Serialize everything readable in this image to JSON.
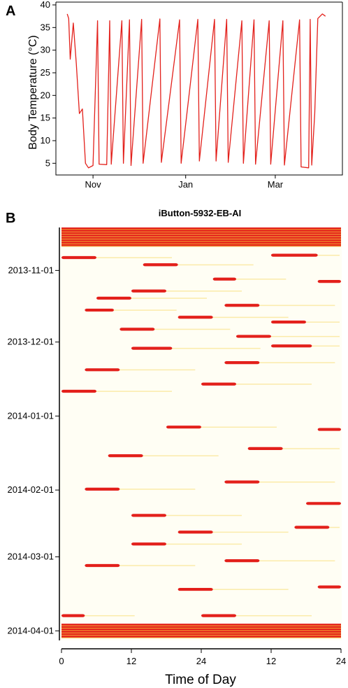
{
  "panel_a": {
    "letter": "A",
    "ylabel": "Body Temperature (°C)",
    "yticks": [
      "5",
      "10",
      "15",
      "20",
      "25",
      "30",
      "35",
      "40"
    ],
    "xticks": [
      "Nov",
      "Jan",
      "Mar"
    ]
  },
  "panel_b": {
    "letter": "B",
    "title": "iButton-5932-EB-AI",
    "dates": [
      "2013-11-01",
      "2013-12-01",
      "2014-01-01",
      "2014-02-01",
      "2014-03-01",
      "2014-04-01"
    ],
    "xticks": [
      "0",
      "12",
      "24",
      "12",
      "24"
    ],
    "xlabel": "Time of Day"
  },
  "colors": {
    "line": "#e3201b",
    "hot": "#e3201b",
    "warm": "#f7b733",
    "pale": "#fffef2",
    "cool": "#fffbe6"
  },
  "chart_data": [
    {
      "type": "line",
      "title": "",
      "xlabel": "",
      "ylabel": "Body Temperature (°C)",
      "ylim": [
        3,
        40
      ],
      "x_ticks": [
        "Nov",
        "Jan",
        "Mar"
      ],
      "y_ticks": [
        5,
        10,
        15,
        20,
        25,
        30,
        35,
        40
      ],
      "grid": false,
      "series": [
        {
          "values": [
            {
              "x": "2013-10-15",
              "y": 38
            },
            {
              "x": "2013-10-16",
              "y": 37
            },
            {
              "x": "2013-10-17",
              "y": 28
            },
            {
              "x": "2013-10-19",
              "y": 36
            },
            {
              "x": "2013-10-21",
              "y": 27
            },
            {
              "x": "2013-10-23",
              "y": 16
            },
            {
              "x": "2013-10-25",
              "y": 17
            },
            {
              "x": "2013-10-27",
              "y": 5.0
            },
            {
              "x": "2013-10-29",
              "y": 4.0
            },
            {
              "x": "2013-11-01",
              "y": 4.5
            },
            {
              "x": "2013-11-04",
              "y": 36.5
            },
            {
              "x": "2013-11-05",
              "y": 4.8
            },
            {
              "x": "2013-11-10",
              "y": 4.7
            },
            {
              "x": "2013-11-12",
              "y": 36.5
            },
            {
              "x": "2013-11-13",
              "y": 4.8
            },
            {
              "x": "2013-11-20",
              "y": 36.5
            },
            {
              "x": "2013-11-21",
              "y": 5.0
            },
            {
              "x": "2013-11-25",
              "y": 36.7
            },
            {
              "x": "2013-11-26",
              "y": 4.5
            },
            {
              "x": "2013-12-03",
              "y": 36.8
            },
            {
              "x": "2013-12-04",
              "y": 5.0
            },
            {
              "x": "2013-12-15",
              "y": 36.9
            },
            {
              "x": "2013-12-16",
              "y": 5.2
            },
            {
              "x": "2013-12-28",
              "y": 36.7
            },
            {
              "x": "2013-12-29",
              "y": 5.0
            },
            {
              "x": "2014-01-09",
              "y": 36.8
            },
            {
              "x": "2014-01-10",
              "y": 5.5
            },
            {
              "x": "2014-01-20",
              "y": 36.8
            },
            {
              "x": "2014-01-21",
              "y": 5.5
            },
            {
              "x": "2014-01-28",
              "y": 36.8
            },
            {
              "x": "2014-01-29",
              "y": 5.2
            },
            {
              "x": "2014-02-07",
              "y": 36.5
            },
            {
              "x": "2014-02-08",
              "y": 5.0
            },
            {
              "x": "2014-02-15",
              "y": 36.7
            },
            {
              "x": "2014-02-16",
              "y": 4.8
            },
            {
              "x": "2014-02-25",
              "y": 36.5
            },
            {
              "x": "2014-02-26",
              "y": 4.8
            },
            {
              "x": "2014-03-06",
              "y": 36.5
            },
            {
              "x": "2014-03-07",
              "y": 4.6
            },
            {
              "x": "2014-03-17",
              "y": 36.7
            },
            {
              "x": "2014-03-18",
              "y": 4.2
            },
            {
              "x": "2014-03-23",
              "y": 4.0
            },
            {
              "x": "2014-03-24",
              "y": 36.8
            },
            {
              "x": "2014-03-25",
              "y": 4.6
            },
            {
              "x": "2014-03-27",
              "y": 16
            },
            {
              "x": "2014-03-29",
              "y": 37
            },
            {
              "x": "2014-04-01",
              "y": 38
            },
            {
              "x": "2014-04-03",
              "y": 37.5
            }
          ]
        }
      ]
    },
    {
      "type": "heatmap",
      "title": "iButton-5932-EB-AI",
      "xlabel": "Time of Day",
      "ylabel": "",
      "x_ticks": [
        "0",
        "12",
        "24",
        "12",
        "24"
      ],
      "y_ticks": [
        "2013-11-01",
        "2013-12-01",
        "2014-01-01",
        "2014-02-01",
        "2014-03-01",
        "2014-04-01"
      ],
      "x_range_hours": [
        0,
        48
      ],
      "date_range": [
        "2013-10-14",
        "2014-04-05"
      ],
      "color_scale": [
        "#fffef2",
        "#fff3c4",
        "#f9c95a",
        "#f08a3a",
        "#e3201b"
      ],
      "euthermic_periods": [
        {
          "from": "2013-10-14",
          "to": "2013-10-22"
        },
        {
          "from": "2014-03-29",
          "to": "2014-04-04"
        }
      ],
      "arousal_bouts": [
        {
          "date": "2013-10-26",
          "start_hour": 0,
          "end_hour": 6
        },
        {
          "date": "2013-10-25",
          "start_hour": 36,
          "end_hour": 44
        },
        {
          "date": "2013-10-29",
          "start_hour": 14,
          "end_hour": 20
        },
        {
          "date": "2013-11-04",
          "start_hour": 26,
          "end_hour": 30
        },
        {
          "date": "2013-11-05",
          "start_hour": 44,
          "end_hour": 48
        },
        {
          "date": "2013-11-09",
          "start_hour": 12,
          "end_hour": 18
        },
        {
          "date": "2013-11-12",
          "start_hour": 6,
          "end_hour": 12
        },
        {
          "date": "2013-11-15",
          "start_hour": 28,
          "end_hour": 34
        },
        {
          "date": "2013-11-17",
          "start_hour": 4,
          "end_hour": 9
        },
        {
          "date": "2013-11-20",
          "start_hour": 20,
          "end_hour": 26
        },
        {
          "date": "2013-11-22",
          "start_hour": 36,
          "end_hour": 42
        },
        {
          "date": "2013-11-25",
          "start_hour": 10,
          "end_hour": 16
        },
        {
          "date": "2013-11-28",
          "start_hour": 30,
          "end_hour": 36
        },
        {
          "date": "2013-12-03",
          "start_hour": 12,
          "end_hour": 19
        },
        {
          "date": "2013-12-02",
          "start_hour": 36,
          "end_hour": 43
        },
        {
          "date": "2013-12-09",
          "start_hour": 28,
          "end_hour": 34
        },
        {
          "date": "2013-12-12",
          "start_hour": 4,
          "end_hour": 10
        },
        {
          "date": "2013-12-18",
          "start_hour": 24,
          "end_hour": 30
        },
        {
          "date": "2013-12-21",
          "start_hour": 0,
          "end_hour": 6
        },
        {
          "date": "2014-01-05",
          "start_hour": 18,
          "end_hour": 24
        },
        {
          "date": "2014-01-06",
          "start_hour": 44,
          "end_hour": 48
        },
        {
          "date": "2014-01-14",
          "start_hour": 32,
          "end_hour": 38
        },
        {
          "date": "2014-01-17",
          "start_hour": 8,
          "end_hour": 14
        },
        {
          "date": "2014-01-28",
          "start_hour": 28,
          "end_hour": 34
        },
        {
          "date": "2014-01-31",
          "start_hour": 4,
          "end_hour": 10
        },
        {
          "date": "2014-02-06",
          "start_hour": 42,
          "end_hour": 48
        },
        {
          "date": "2014-02-11",
          "start_hour": 12,
          "end_hour": 18
        },
        {
          "date": "2014-02-16",
          "start_hour": 40,
          "end_hour": 46
        },
        {
          "date": "2014-02-18",
          "start_hour": 20,
          "end_hour": 26
        },
        {
          "date": "2014-02-23",
          "start_hour": 12,
          "end_hour": 18
        },
        {
          "date": "2014-03-02",
          "start_hour": 28,
          "end_hour": 34
        },
        {
          "date": "2014-03-04",
          "start_hour": 4,
          "end_hour": 10
        },
        {
          "date": "2014-03-13",
          "start_hour": 44,
          "end_hour": 48
        },
        {
          "date": "2014-03-14",
          "start_hour": 20,
          "end_hour": 26
        },
        {
          "date": "2014-03-25",
          "start_hour": 0,
          "end_hour": 4
        },
        {
          "date": "2014-03-25",
          "start_hour": 24,
          "end_hour": 30
        }
      ]
    }
  ]
}
